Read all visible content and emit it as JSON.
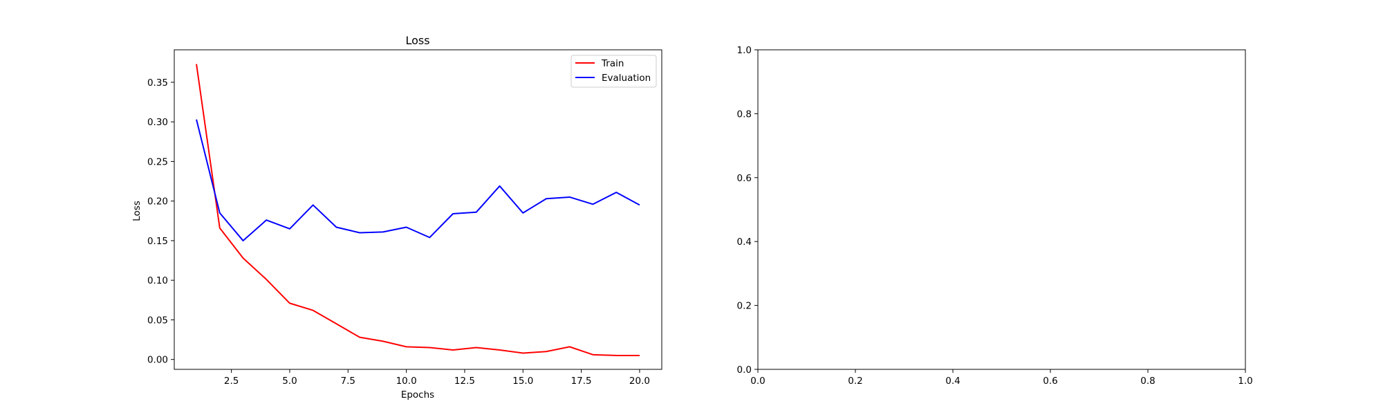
{
  "chart_data": [
    {
      "type": "line",
      "title": "Loss",
      "xlabel": "Epochs",
      "ylabel": "Loss",
      "xlim": [
        0.05,
        20.95
      ],
      "ylim": [
        -0.0125,
        0.391
      ],
      "xticks": [
        2.5,
        5.0,
        7.5,
        10.0,
        12.5,
        15.0,
        17.5,
        20.0
      ],
      "xtick_labels": [
        "2.5",
        "5.0",
        "7.5",
        "10.0",
        "12.5",
        "15.0",
        "17.5",
        "20.0"
      ],
      "yticks": [
        0.0,
        0.05,
        0.1,
        0.15,
        0.2,
        0.25,
        0.3,
        0.35
      ],
      "ytick_labels": [
        "0.00",
        "0.05",
        "0.10",
        "0.15",
        "0.20",
        "0.25",
        "0.30",
        "0.35"
      ],
      "grid": false,
      "legend": "upper right",
      "x": [
        1,
        2,
        3,
        4,
        5,
        6,
        7,
        8,
        9,
        10,
        11,
        12,
        13,
        14,
        15,
        16,
        17,
        18,
        19,
        20
      ],
      "series": [
        {
          "name": "Train",
          "color": "#ff0000",
          "values": [
            0.373,
            0.166,
            0.128,
            0.101,
            0.071,
            0.062,
            0.045,
            0.028,
            0.023,
            0.016,
            0.015,
            0.012,
            0.015,
            0.012,
            0.008,
            0.01,
            0.016,
            0.006,
            0.005,
            0.005
          ]
        },
        {
          "name": "Evaluation",
          "color": "#0000ff",
          "values": [
            0.303,
            0.185,
            0.15,
            0.176,
            0.165,
            0.195,
            0.167,
            0.16,
            0.161,
            0.167,
            0.154,
            0.184,
            0.186,
            0.219,
            0.185,
            0.203,
            0.205,
            0.196,
            0.211,
            0.195
          ]
        }
      ]
    },
    {
      "type": "line",
      "title": "",
      "xlabel": "",
      "ylabel": "",
      "xlim": [
        0.0,
        1.0
      ],
      "ylim": [
        0.0,
        1.0
      ],
      "xticks": [
        0.0,
        0.2,
        0.4,
        0.6,
        0.8,
        1.0
      ],
      "xtick_labels": [
        "0.0",
        "0.2",
        "0.4",
        "0.6",
        "0.8",
        "1.0"
      ],
      "yticks": [
        0.0,
        0.2,
        0.4,
        0.6,
        0.8,
        1.0
      ],
      "ytick_labels": [
        "0.0",
        "0.2",
        "0.4",
        "0.6",
        "0.8",
        "1.0"
      ],
      "grid": false,
      "series": []
    }
  ]
}
